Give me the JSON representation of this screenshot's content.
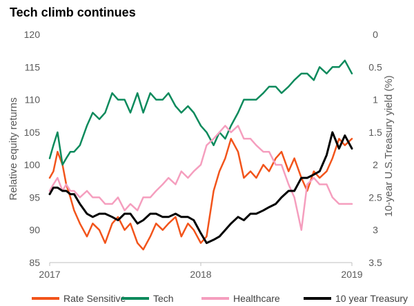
{
  "chart_data": {
    "type": "line",
    "title": "Tech climb continues",
    "xlabel": "",
    "ylabel": "Relative equity returns",
    "y2label": "10-year U.S.Treasury yield (%)",
    "x_ticks": [
      "2017",
      "2018",
      "2019"
    ],
    "xlim": [
      "2017-01-01",
      "2019-01-01"
    ],
    "ylim": [
      85,
      120
    ],
    "y_ticks": [
      85,
      90,
      95,
      100,
      105,
      110,
      115,
      120
    ],
    "y2lim_inverted": [
      0,
      3.5
    ],
    "y2_ticks": [
      0,
      0.5,
      1,
      1.5,
      2,
      2.5,
      3,
      3.5
    ],
    "grid": false,
    "legend_position": "bottom",
    "series": [
      {
        "name": "Rate Sensitive",
        "color": "#f2541b",
        "axis": "left",
        "x": [
          "2017-01-01",
          "2017-01-10",
          "2017-01-20",
          "2017-02-01",
          "2017-02-10",
          "2017-02-20",
          "2017-03-01",
          "2017-03-15",
          "2017-04-01",
          "2017-04-15",
          "2017-05-01",
          "2017-05-15",
          "2017-06-01",
          "2017-06-15",
          "2017-07-01",
          "2017-07-15",
          "2017-08-01",
          "2017-08-15",
          "2017-09-01",
          "2017-09-15",
          "2017-10-01",
          "2017-10-15",
          "2017-11-01",
          "2017-11-15",
          "2017-12-01",
          "2017-12-15",
          "2018-01-01",
          "2018-01-15",
          "2018-02-01",
          "2018-02-15",
          "2018-03-01",
          "2018-03-15",
          "2018-04-01",
          "2018-04-15",
          "2018-05-01",
          "2018-05-15",
          "2018-06-01",
          "2018-06-15",
          "2018-07-01",
          "2018-07-15",
          "2018-08-01",
          "2018-08-15",
          "2018-09-01",
          "2018-09-15",
          "2018-10-01",
          "2018-10-15",
          "2018-11-01",
          "2018-11-15",
          "2018-12-01",
          "2018-12-15",
          "2019-01-01"
        ],
        "values": [
          98,
          99,
          102,
          100,
          97,
          95,
          93,
          91,
          89,
          91,
          90,
          88,
          91,
          92,
          90,
          91,
          88,
          87,
          89,
          91,
          90,
          91,
          92,
          89,
          91,
          90,
          88,
          89,
          96,
          99,
          101,
          104,
          102,
          98,
          99,
          98,
          100,
          99,
          101,
          102,
          99,
          101,
          98,
          96,
          99,
          98,
          99,
          101,
          104,
          103,
          104
        ]
      },
      {
        "name": "Tech",
        "color": "#0b8a5c",
        "axis": "left",
        "x": [
          "2017-01-01",
          "2017-01-10",
          "2017-01-20",
          "2017-02-01",
          "2017-02-10",
          "2017-02-20",
          "2017-03-01",
          "2017-03-15",
          "2017-04-01",
          "2017-04-15",
          "2017-05-01",
          "2017-05-15",
          "2017-06-01",
          "2017-06-15",
          "2017-07-01",
          "2017-07-15",
          "2017-08-01",
          "2017-08-15",
          "2017-09-01",
          "2017-09-15",
          "2017-10-01",
          "2017-10-15",
          "2017-11-01",
          "2017-11-15",
          "2017-12-01",
          "2017-12-15",
          "2018-01-01",
          "2018-01-15",
          "2018-02-01",
          "2018-02-15",
          "2018-03-01",
          "2018-03-15",
          "2018-04-01",
          "2018-04-15",
          "2018-05-01",
          "2018-05-15",
          "2018-06-01",
          "2018-06-15",
          "2018-07-01",
          "2018-07-15",
          "2018-08-01",
          "2018-08-15",
          "2018-09-01",
          "2018-09-15",
          "2018-10-01",
          "2018-10-15",
          "2018-11-01",
          "2018-11-15",
          "2018-12-01",
          "2018-12-15",
          "2019-01-01"
        ],
        "values": [
          101,
          103,
          105,
          100,
          101,
          102,
          102,
          103,
          106,
          108,
          107,
          108,
          111,
          110,
          110,
          108,
          111,
          108,
          111,
          110,
          110,
          111,
          109,
          108,
          109,
          108,
          106,
          105,
          103,
          105,
          104,
          106,
          108,
          110,
          110,
          110,
          111,
          112,
          112,
          111,
          112,
          113,
          114,
          114,
          113,
          115,
          114,
          115,
          115,
          116,
          114
        ]
      },
      {
        "name": "Healthcare",
        "color": "#f59ebe",
        "axis": "left",
        "x": [
          "2017-01-01",
          "2017-01-10",
          "2017-01-20",
          "2017-02-01",
          "2017-02-10",
          "2017-02-20",
          "2017-03-01",
          "2017-03-15",
          "2017-04-01",
          "2017-04-15",
          "2017-05-01",
          "2017-05-15",
          "2017-06-01",
          "2017-06-15",
          "2017-07-01",
          "2017-07-15",
          "2017-08-01",
          "2017-08-15",
          "2017-09-01",
          "2017-09-15",
          "2017-10-01",
          "2017-10-15",
          "2017-11-01",
          "2017-11-15",
          "2017-12-01",
          "2017-12-15",
          "2018-01-01",
          "2018-01-15",
          "2018-02-01",
          "2018-02-15",
          "2018-03-01",
          "2018-03-15",
          "2018-04-01",
          "2018-04-15",
          "2018-05-01",
          "2018-05-15",
          "2018-06-01",
          "2018-06-15",
          "2018-07-01",
          "2018-07-15",
          "2018-08-01",
          "2018-08-15",
          "2018-09-01",
          "2018-09-15",
          "2018-10-01",
          "2018-10-15",
          "2018-11-01",
          "2018-11-15",
          "2018-12-01",
          "2018-12-15",
          "2019-01-01"
        ],
        "values": [
          96,
          97,
          98,
          96,
          97,
          96,
          96,
          95,
          96,
          95,
          95,
          94,
          94,
          95,
          93,
          94,
          93,
          95,
          95,
          96,
          97,
          98,
          97,
          99,
          98,
          99,
          100,
          103,
          104,
          105,
          106,
          105,
          106,
          104,
          104,
          103,
          102,
          102,
          100,
          100,
          97,
          95,
          90,
          97,
          98,
          97,
          97,
          95,
          94,
          94,
          94
        ]
      },
      {
        "name": "10 year Treasury",
        "color": "#000000",
        "axis": "right",
        "x": [
          "2017-01-01",
          "2017-01-10",
          "2017-01-20",
          "2017-02-01",
          "2017-02-10",
          "2017-02-20",
          "2017-03-01",
          "2017-03-15",
          "2017-04-01",
          "2017-04-15",
          "2017-05-01",
          "2017-05-15",
          "2017-06-01",
          "2017-06-15",
          "2017-07-01",
          "2017-07-15",
          "2017-08-01",
          "2017-08-15",
          "2017-09-01",
          "2017-09-15",
          "2017-10-01",
          "2017-10-15",
          "2017-11-01",
          "2017-11-15",
          "2017-12-01",
          "2017-12-15",
          "2018-01-01",
          "2018-01-15",
          "2018-02-01",
          "2018-02-15",
          "2018-03-01",
          "2018-03-15",
          "2018-04-01",
          "2018-04-15",
          "2018-05-01",
          "2018-05-15",
          "2018-06-01",
          "2018-06-15",
          "2018-07-01",
          "2018-07-15",
          "2018-08-01",
          "2018-08-15",
          "2018-09-01",
          "2018-09-15",
          "2018-10-01",
          "2018-10-15",
          "2018-11-01",
          "2018-11-15",
          "2018-12-01",
          "2018-12-15",
          "2019-01-01"
        ],
        "values": [
          2.45,
          2.35,
          2.35,
          2.4,
          2.4,
          2.45,
          2.45,
          2.6,
          2.75,
          2.8,
          2.75,
          2.75,
          2.8,
          2.85,
          2.75,
          2.75,
          2.9,
          2.85,
          2.75,
          2.75,
          2.8,
          2.8,
          2.75,
          2.8,
          2.8,
          2.85,
          3.05,
          3.2,
          3.15,
          3.1,
          3.0,
          2.9,
          2.8,
          2.85,
          2.75,
          2.75,
          2.7,
          2.65,
          2.6,
          2.5,
          2.4,
          2.4,
          2.2,
          2.2,
          2.15,
          2.1,
          1.85,
          1.5,
          1.75,
          1.55,
          1.75
        ]
      }
    ]
  }
}
